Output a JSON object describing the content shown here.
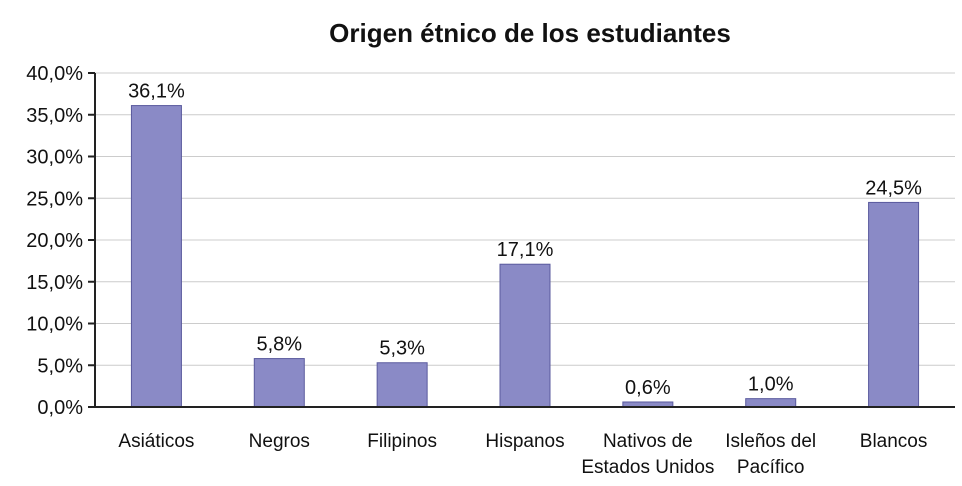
{
  "chart_data": {
    "type": "bar",
    "title": "Origen étnico de los estudiantes",
    "xlabel": "",
    "ylabel": "",
    "ylim": [
      0,
      40
    ],
    "y_ticks": [
      "0,0%",
      "5,0%",
      "10,0%",
      "15,0%",
      "20,0%",
      "25,0%",
      "30,0%",
      "35,0%",
      "40,0%"
    ],
    "y_tick_values": [
      0,
      5,
      10,
      15,
      20,
      25,
      30,
      35,
      40
    ],
    "categories": [
      [
        "Asiáticos"
      ],
      [
        "Negros"
      ],
      [
        "Filipinos"
      ],
      [
        "Hispanos"
      ],
      [
        "Nativos de",
        "Estados Unidos"
      ],
      [
        "Isleños del",
        "Pacífico"
      ],
      [
        "Blancos"
      ]
    ],
    "values": [
      36.1,
      5.8,
      5.3,
      17.1,
      0.6,
      1.0,
      24.5
    ],
    "data_labels": [
      "36,1%",
      "5,8%",
      "5,3%",
      "17,1%",
      "0,6%",
      "1,0%",
      "24,5%"
    ],
    "grid": true,
    "legend": "none",
    "bar_color": "#8a8ac6"
  }
}
